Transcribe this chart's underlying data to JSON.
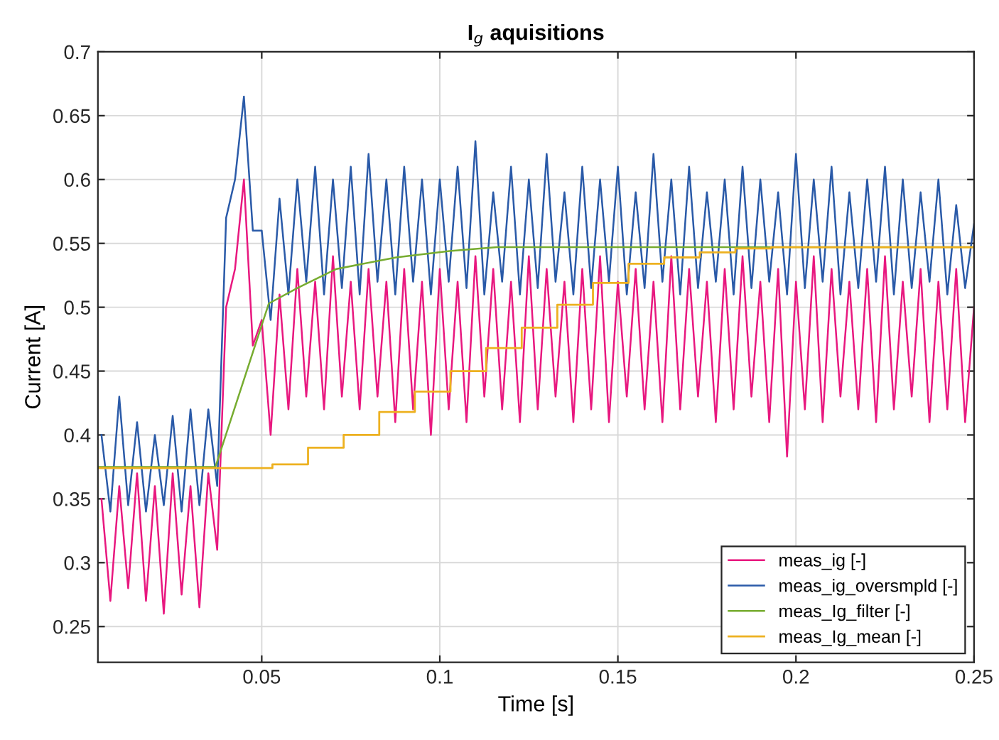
{
  "chart_data": {
    "type": "line",
    "title": "I$_{g}$ aquisitions",
    "xlabel": "Time [s]",
    "ylabel": "Current [A]",
    "xlim": [
      0.004,
      0.25
    ],
    "ylim": [
      0.222,
      0.7
    ],
    "xticks": [
      0.05,
      0.1,
      0.15,
      0.2,
      0.25
    ],
    "yticks": [
      0.25,
      0.3,
      0.35,
      0.4,
      0.45,
      0.5,
      0.55,
      0.6,
      0.65,
      0.7
    ],
    "grid": true,
    "legend": "bottom right",
    "x": [
      0.005,
      0.0075,
      0.01,
      0.0125,
      0.015,
      0.0175,
      0.02,
      0.0225,
      0.025,
      0.0275,
      0.03,
      0.0325,
      0.035,
      0.0375,
      0.04,
      0.0425,
      0.045,
      0.0475,
      0.05,
      0.0525,
      0.055,
      0.0575,
      0.06,
      0.0625,
      0.065,
      0.0675,
      0.07,
      0.0725,
      0.075,
      0.0775,
      0.08,
      0.0825,
      0.085,
      0.0875,
      0.09,
      0.0925,
      0.095,
      0.0975,
      0.1,
      0.1025,
      0.105,
      0.1075,
      0.11,
      0.1125,
      0.115,
      0.1175,
      0.12,
      0.1225,
      0.125,
      0.1275,
      0.13,
      0.1325,
      0.135,
      0.1375,
      0.14,
      0.1425,
      0.145,
      0.1475,
      0.15,
      0.1525,
      0.155,
      0.1575,
      0.16,
      0.1625,
      0.165,
      0.1675,
      0.17,
      0.1725,
      0.175,
      0.1775,
      0.18,
      0.1825,
      0.185,
      0.1875,
      0.19,
      0.1925,
      0.195,
      0.1975,
      0.2,
      0.2025,
      0.205,
      0.2075,
      0.21,
      0.2125,
      0.215,
      0.2175,
      0.22,
      0.2225,
      0.225,
      0.2275,
      0.23,
      0.2325,
      0.235,
      0.2375,
      0.24,
      0.2425,
      0.245,
      0.2475,
      0.25
    ],
    "series": [
      {
        "name": "meas_ig [-]",
        "color": "#e8187f",
        "values": [
          0.35,
          0.27,
          0.36,
          0.28,
          0.37,
          0.27,
          0.36,
          0.26,
          0.37,
          0.275,
          0.36,
          0.265,
          0.37,
          0.31,
          0.5,
          0.53,
          0.6,
          0.47,
          0.49,
          0.4,
          0.51,
          0.42,
          0.53,
          0.43,
          0.52,
          0.42,
          0.54,
          0.43,
          0.52,
          0.42,
          0.53,
          0.43,
          0.52,
          0.41,
          0.53,
          0.42,
          0.52,
          0.4,
          0.53,
          0.42,
          0.52,
          0.41,
          0.54,
          0.43,
          0.53,
          0.42,
          0.52,
          0.41,
          0.54,
          0.42,
          0.53,
          0.43,
          0.52,
          0.41,
          0.53,
          0.42,
          0.54,
          0.41,
          0.52,
          0.43,
          0.53,
          0.42,
          0.52,
          0.41,
          0.54,
          0.42,
          0.53,
          0.43,
          0.52,
          0.41,
          0.53,
          0.42,
          0.54,
          0.43,
          0.52,
          0.41,
          0.53,
          0.383,
          0.52,
          0.42,
          0.54,
          0.41,
          0.53,
          0.43,
          0.52,
          0.42,
          0.53,
          0.41,
          0.54,
          0.42,
          0.52,
          0.43,
          0.53,
          0.41,
          0.52,
          0.42,
          0.53,
          0.41,
          0.5
        ]
      },
      {
        "name": "meas_ig_oversmpld [-]",
        "color": "#2a5aa8",
        "values": [
          0.4,
          0.34,
          0.43,
          0.345,
          0.41,
          0.34,
          0.4,
          0.345,
          0.415,
          0.34,
          0.42,
          0.345,
          0.42,
          0.36,
          0.57,
          0.6,
          0.665,
          0.56,
          0.56,
          0.49,
          0.585,
          0.51,
          0.6,
          0.52,
          0.61,
          0.51,
          0.6,
          0.515,
          0.61,
          0.51,
          0.62,
          0.52,
          0.6,
          0.51,
          0.61,
          0.52,
          0.6,
          0.51,
          0.6,
          0.52,
          0.61,
          0.515,
          0.63,
          0.51,
          0.59,
          0.52,
          0.61,
          0.51,
          0.6,
          0.515,
          0.62,
          0.52,
          0.59,
          0.51,
          0.61,
          0.515,
          0.6,
          0.52,
          0.61,
          0.51,
          0.59,
          0.515,
          0.62,
          0.52,
          0.6,
          0.51,
          0.61,
          0.515,
          0.59,
          0.52,
          0.6,
          0.51,
          0.61,
          0.515,
          0.6,
          0.52,
          0.59,
          0.51,
          0.62,
          0.515,
          0.6,
          0.52,
          0.61,
          0.51,
          0.59,
          0.515,
          0.6,
          0.52,
          0.61,
          0.51,
          0.6,
          0.515,
          0.59,
          0.52,
          0.6,
          0.51,
          0.58,
          0.515,
          0.565
        ]
      },
      {
        "name": "meas_Ig_filter [-]",
        "color": "#77ac30",
        "x": [
          0.004,
          0.037,
          0.0493,
          0.052,
          0.06,
          0.071,
          0.0877,
          0.1027,
          0.116,
          0.25
        ],
        "values": [
          0.375,
          0.375,
          0.48,
          0.503,
          0.515,
          0.53,
          0.539,
          0.544,
          0.547,
          0.547
        ]
      },
      {
        "name": "meas_Ig_mean [-]",
        "color": "#edb120",
        "type": "step",
        "x": [
          0.004,
          0.053,
          0.063,
          0.073,
          0.083,
          0.093,
          0.103,
          0.113,
          0.123,
          0.133,
          0.143,
          0.153,
          0.163,
          0.173,
          0.183,
          0.193,
          0.25
        ],
        "values": [
          0.374,
          0.377,
          0.39,
          0.4,
          0.418,
          0.434,
          0.45,
          0.468,
          0.484,
          0.502,
          0.519,
          0.534,
          0.539,
          0.543,
          0.546,
          0.547,
          0.547
        ]
      }
    ]
  }
}
